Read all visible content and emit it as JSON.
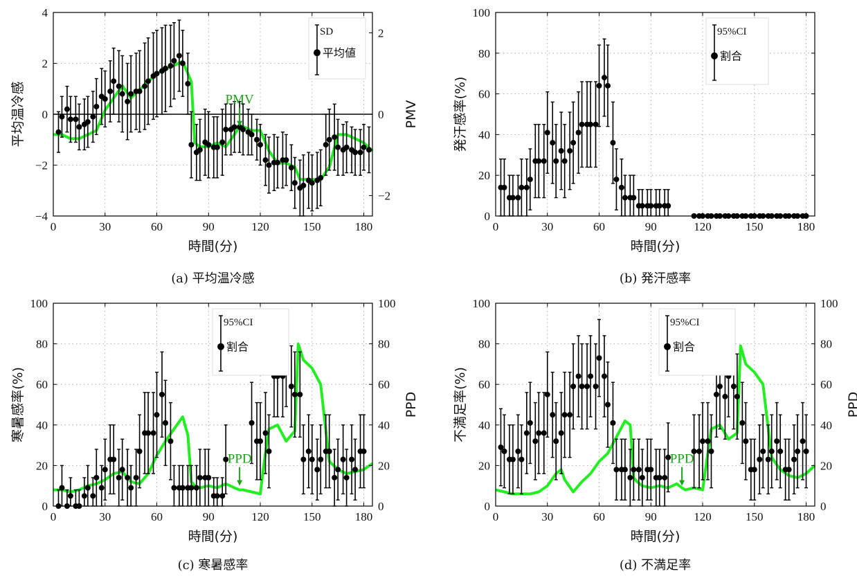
{
  "chart_data": [
    {
      "id": "a",
      "type": "scatter",
      "caption": "(a) 平均温冷感",
      "xlabel": "時間(分)",
      "ylabel": "平均温冷感",
      "ylabel_right": "PMV",
      "xlim": [
        0,
        185
      ],
      "xticks": [
        0,
        30,
        60,
        90,
        120,
        150,
        180
      ],
      "ylim": [
        -4,
        4
      ],
      "yticks": [
        -4,
        -2,
        0,
        2,
        4
      ],
      "yticks_right": [
        -2,
        0,
        2
      ],
      "ylim_right": [
        -2.5,
        2.5
      ],
      "zero_line": true,
      "grid": true,
      "legend": {
        "position": "top-right",
        "error_label": "SD",
        "point_label": "平均値"
      },
      "annotation": {
        "text": "PMV",
        "x": 108,
        "y": -0.35
      },
      "x": [
        3,
        5,
        8,
        10,
        13,
        15,
        18,
        20,
        23,
        25,
        28,
        30,
        33,
        35,
        38,
        40,
        43,
        45,
        48,
        50,
        53,
        55,
        58,
        60,
        63,
        65,
        68,
        70,
        73,
        75,
        78,
        80,
        83,
        85,
        88,
        90,
        93,
        95,
        98,
        100,
        103,
        105,
        108,
        110,
        113,
        115,
        118,
        120,
        123,
        125,
        128,
        130,
        133,
        135,
        138,
        140,
        143,
        145,
        148,
        150,
        153,
        155,
        158,
        160,
        163,
        165,
        168,
        170,
        173,
        175,
        178,
        180,
        183
      ],
      "values": [
        -0.7,
        -0.1,
        0.2,
        -0.2,
        -0.2,
        -0.5,
        -0.4,
        -0.3,
        -0.1,
        0.3,
        0.7,
        0.6,
        0.9,
        1.3,
        1.1,
        0.8,
        0.5,
        0.8,
        0.9,
        0.9,
        1.1,
        1.3,
        1.5,
        1.6,
        1.7,
        1.8,
        1.9,
        2.1,
        2.3,
        2.0,
        1.2,
        -1.2,
        -1.5,
        -1.4,
        -1.1,
        -1.2,
        -1.3,
        -1.3,
        -1.1,
        -0.6,
        -0.6,
        -0.5,
        -0.5,
        -0.6,
        -0.7,
        -0.8,
        -1.0,
        -1.2,
        -1.8,
        -2.0,
        -1.9,
        -1.9,
        -1.8,
        -1.8,
        -2.1,
        -2.7,
        -2.9,
        -2.8,
        -2.6,
        -2.7,
        -2.6,
        -2.5,
        -1.2,
        -1.0,
        -0.9,
        -1.3,
        -1.4,
        -1.3,
        -1.4,
        -1.5,
        -1.5,
        -1.3,
        -1.4
      ],
      "errors": [
        0.8,
        0.8,
        0.9,
        0.9,
        0.9,
        0.9,
        1.0,
        1.0,
        1.0,
        1.1,
        1.1,
        1.1,
        1.2,
        1.3,
        1.4,
        1.5,
        1.5,
        1.5,
        1.5,
        1.6,
        1.7,
        1.7,
        1.7,
        1.7,
        1.7,
        1.7,
        1.6,
        1.5,
        1.4,
        1.3,
        1.2,
        1.3,
        1.1,
        1.2,
        1.3,
        1.3,
        1.2,
        1.2,
        1.3,
        1.0,
        1.0,
        1.0,
        1.0,
        1.0,
        0.9,
        0.8,
        0.8,
        0.8,
        1.0,
        1.1,
        1.1,
        1.0,
        1.1,
        1.0,
        0.9,
        1.0,
        1.1,
        1.2,
        1.1,
        1.1,
        1.1,
        1.1,
        1.2,
        1.2,
        1.3,
        1.1,
        1.0,
        1.0,
        0.9,
        0.9,
        0.9,
        0.9,
        0.9
      ],
      "line": {
        "name": "PMV",
        "color": "#22ee22",
        "x": [
          0,
          5,
          10,
          15,
          20,
          25,
          30,
          35,
          40,
          45,
          50,
          55,
          60,
          65,
          70,
          75,
          80,
          82,
          85,
          90,
          95,
          100,
          105,
          108,
          110,
          115,
          120,
          125,
          130,
          135,
          140,
          143,
          145,
          150,
          155,
          160,
          165,
          170,
          175,
          180,
          185
        ],
        "y": [
          -0.5,
          -0.5,
          -0.6,
          -0.6,
          -0.5,
          -0.4,
          0.1,
          0.4,
          0.7,
          0.4,
          0.6,
          0.8,
          1.0,
          1.1,
          1.2,
          1.3,
          0.8,
          -0.7,
          -0.8,
          -0.8,
          -0.7,
          -0.8,
          -0.5,
          -0.3,
          -0.3,
          -0.4,
          -0.4,
          -0.9,
          -1.2,
          -1.2,
          -1.3,
          -1.6,
          -1.6,
          -1.6,
          -1.6,
          -1.3,
          -0.5,
          -0.5,
          -0.6,
          -0.7,
          -0.9
        ]
      }
    },
    {
      "id": "b",
      "type": "scatter",
      "caption": "(b) 発汗感率",
      "xlabel": "時間(分)",
      "ylabel": "発汗感率(%)",
      "xlim": [
        0,
        185
      ],
      "xticks": [
        0,
        30,
        60,
        90,
        120,
        150,
        180
      ],
      "ylim": [
        0,
        100
      ],
      "yticks": [
        0,
        20,
        40,
        60,
        80,
        100
      ],
      "grid": true,
      "legend": {
        "position": "top-right",
        "error_label": "95%CI",
        "point_label": "割合"
      },
      "x": [
        3,
        5,
        8,
        10,
        13,
        15,
        18,
        20,
        23,
        25,
        28,
        30,
        33,
        35,
        38,
        40,
        43,
        45,
        48,
        50,
        53,
        55,
        58,
        60,
        63,
        65,
        68,
        70,
        73,
        75,
        78,
        80,
        83,
        85,
        88,
        90,
        93,
        95,
        98,
        100,
        115,
        118,
        120,
        123,
        125,
        128,
        130,
        133,
        135,
        138,
        140,
        143,
        145,
        148,
        150,
        153,
        155,
        158,
        160,
        163,
        165,
        168,
        170,
        173,
        175,
        178,
        180
      ],
      "values": [
        14,
        14,
        9,
        9,
        9,
        14,
        14,
        18,
        27,
        27,
        27,
        41,
        36,
        27,
        32,
        27,
        32,
        36,
        41,
        45,
        45,
        45,
        45,
        64,
        68,
        64,
        36,
        18,
        14,
        9,
        9,
        9,
        5,
        5,
        5,
        5,
        5,
        5,
        5,
        5,
        0,
        0,
        0,
        0,
        0,
        0,
        0,
        0,
        0,
        0,
        0,
        0,
        0,
        0,
        0,
        0,
        0,
        0,
        0,
        0,
        0,
        0,
        0,
        0,
        0,
        0,
        0
      ],
      "errors": [
        14,
        14,
        11,
        11,
        11,
        14,
        14,
        15,
        18,
        18,
        18,
        20,
        20,
        18,
        19,
        18,
        19,
        20,
        20,
        21,
        21,
        21,
        21,
        20,
        19,
        20,
        20,
        15,
        14,
        11,
        11,
        11,
        8,
        8,
        8,
        8,
        8,
        8,
        8,
        8,
        0,
        0,
        0,
        0,
        0,
        0,
        0,
        0,
        0,
        0,
        0,
        0,
        0,
        0,
        0,
        0,
        0,
        0,
        0,
        0,
        0,
        0,
        0,
        0,
        0,
        0,
        0
      ]
    },
    {
      "id": "c",
      "type": "scatter",
      "caption": "(c) 寒暑感率",
      "xlabel": "時間(分)",
      "ylabel": "寒暑感率(%)",
      "ylabel_right": "PPD",
      "xlim": [
        0,
        185
      ],
      "xticks": [
        0,
        30,
        60,
        90,
        120,
        150,
        180
      ],
      "ylim": [
        0,
        100
      ],
      "yticks": [
        0,
        20,
        40,
        60,
        80,
        100
      ],
      "yticks_right": [
        0,
        20,
        40,
        60,
        80,
        100
      ],
      "ylim_right": [
        0,
        100
      ],
      "grid": true,
      "legend": {
        "position": "top-right",
        "error_label": "95%CI",
        "point_label": "割合"
      },
      "annotation": {
        "text": "PPD",
        "x": 108,
        "y": 9
      },
      "x": [
        3,
        5,
        8,
        10,
        13,
        15,
        18,
        20,
        23,
        25,
        28,
        30,
        33,
        35,
        38,
        40,
        43,
        45,
        48,
        50,
        53,
        55,
        58,
        60,
        63,
        65,
        68,
        70,
        73,
        75,
        78,
        80,
        83,
        85,
        88,
        90,
        93,
        95,
        98,
        100,
        115,
        118,
        120,
        123,
        125,
        128,
        130,
        133,
        135,
        138,
        140,
        143,
        145,
        148,
        150,
        153,
        155,
        158,
        160,
        163,
        165,
        168,
        170,
        173,
        175,
        178,
        180
      ],
      "values": [
        0,
        9,
        0,
        5,
        0,
        0,
        5,
        9,
        5,
        14,
        9,
        18,
        23,
        23,
        14,
        18,
        14,
        9,
        14,
        27,
        36,
        36,
        36,
        45,
        55,
        41,
        32,
        9,
        9,
        9,
        9,
        9,
        9,
        14,
        14,
        14,
        5,
        5,
        5,
        23,
        41,
        32,
        32,
        36,
        27,
        64,
        64,
        64,
        68,
        59,
        55,
        55,
        23,
        27,
        23,
        18,
        23,
        27,
        27,
        14,
        18,
        23,
        14,
        23,
        18,
        27,
        27
      ],
      "errors": [
        8,
        11,
        8,
        9,
        8,
        8,
        9,
        11,
        9,
        14,
        11,
        15,
        17,
        17,
        14,
        15,
        14,
        11,
        14,
        18,
        20,
        20,
        20,
        21,
        21,
        21,
        19,
        11,
        11,
        11,
        11,
        11,
        11,
        14,
        14,
        14,
        9,
        9,
        9,
        17,
        20,
        19,
        19,
        20,
        18,
        20,
        20,
        20,
        19,
        20,
        21,
        21,
        17,
        18,
        17,
        15,
        17,
        18,
        18,
        14,
        15,
        17,
        14,
        17,
        15,
        18,
        18
      ],
      "line": {
        "name": "PPD",
        "color": "#22ee22",
        "x": [
          0,
          5,
          10,
          15,
          20,
          25,
          30,
          35,
          40,
          45,
          50,
          55,
          60,
          65,
          70,
          75,
          78,
          80,
          82,
          85,
          90,
          95,
          100,
          105,
          108,
          110,
          115,
          120,
          122,
          125,
          130,
          135,
          140,
          142,
          145,
          150,
          155,
          160,
          165,
          170,
          175,
          180,
          185
        ],
        "y": [
          8,
          8,
          7,
          8,
          10,
          11,
          13,
          16,
          17,
          12,
          11,
          16,
          25,
          32,
          38,
          44,
          35,
          12,
          10,
          9,
          10,
          9,
          11,
          9,
          8,
          8,
          7,
          6,
          20,
          38,
          40,
          32,
          37,
          80,
          72,
          68,
          60,
          22,
          18,
          16,
          17,
          18,
          21
        ]
      }
    },
    {
      "id": "d",
      "type": "scatter",
      "caption": "(d) 不満足率",
      "xlabel": "時間(分)",
      "ylabel": "不満足率(%)",
      "ylabel_right": "PPD",
      "xlim": [
        0,
        185
      ],
      "xticks": [
        0,
        30,
        60,
        90,
        120,
        150,
        180
      ],
      "ylim": [
        0,
        100
      ],
      "yticks": [
        0,
        20,
        40,
        60,
        80,
        100
      ],
      "yticks_right": [
        0,
        20,
        40,
        60,
        80,
        100
      ],
      "ylim_right": [
        0,
        100
      ],
      "grid": true,
      "legend": {
        "position": "top-right",
        "error_label": "95%CI",
        "point_label": "割合"
      },
      "annotation": {
        "text": "PPD",
        "x": 108,
        "y": 9
      },
      "x": [
        3,
        5,
        8,
        10,
        13,
        15,
        18,
        20,
        23,
        25,
        28,
        30,
        33,
        35,
        38,
        40,
        43,
        45,
        48,
        50,
        53,
        55,
        58,
        60,
        63,
        65,
        68,
        70,
        73,
        75,
        78,
        80,
        83,
        85,
        88,
        90,
        93,
        95,
        98,
        100,
        115,
        118,
        120,
        123,
        125,
        128,
        130,
        133,
        135,
        138,
        140,
        143,
        145,
        148,
        150,
        153,
        155,
        158,
        160,
        163,
        165,
        168,
        170,
        173,
        175,
        178,
        180
      ],
      "values": [
        29,
        27,
        23,
        23,
        27,
        23,
        36,
        41,
        32,
        36,
        36,
        55,
        45,
        32,
        36,
        45,
        45,
        59,
        64,
        59,
        59,
        64,
        59,
        73,
        64,
        50,
        41,
        18,
        18,
        18,
        14,
        18,
        18,
        14,
        18,
        18,
        14,
        14,
        14,
        24,
        27,
        27,
        32,
        32,
        27,
        55,
        59,
        54,
        64,
        59,
        54,
        41,
        32,
        18,
        18,
        23,
        27,
        23,
        27,
        32,
        27,
        18,
        18,
        23,
        27,
        32,
        27
      ],
      "errors": [
        19,
        18,
        17,
        17,
        18,
        17,
        20,
        20,
        19,
        20,
        20,
        21,
        21,
        19,
        20,
        21,
        21,
        21,
        20,
        21,
        21,
        20,
        21,
        19,
        20,
        21,
        20,
        15,
        15,
        15,
        14,
        15,
        15,
        14,
        15,
        15,
        14,
        14,
        14,
        17,
        18,
        18,
        19,
        19,
        18,
        21,
        21,
        21,
        20,
        21,
        21,
        20,
        19,
        15,
        15,
        17,
        18,
        17,
        18,
        19,
        18,
        15,
        15,
        17,
        18,
        19,
        18
      ],
      "line": {
        "name": "PPD",
        "color": "#22ee22",
        "x": [
          0,
          5,
          10,
          15,
          20,
          25,
          30,
          35,
          38,
          40,
          45,
          50,
          55,
          60,
          65,
          70,
          75,
          78,
          80,
          82,
          85,
          90,
          95,
          100,
          105,
          108,
          110,
          115,
          120,
          122,
          125,
          130,
          135,
          140,
          142,
          145,
          150,
          155,
          160,
          165,
          170,
          175,
          180,
          185
        ],
        "y": [
          8,
          7,
          6,
          6,
          6,
          7,
          10,
          16,
          18,
          13,
          7,
          12,
          16,
          22,
          26,
          34,
          42,
          40,
          14,
          12,
          10,
          9,
          10,
          9,
          11,
          9,
          8,
          9,
          8,
          20,
          38,
          40,
          33,
          36,
          79,
          70,
          66,
          60,
          24,
          18,
          15,
          14,
          16,
          20
        ]
      }
    }
  ]
}
